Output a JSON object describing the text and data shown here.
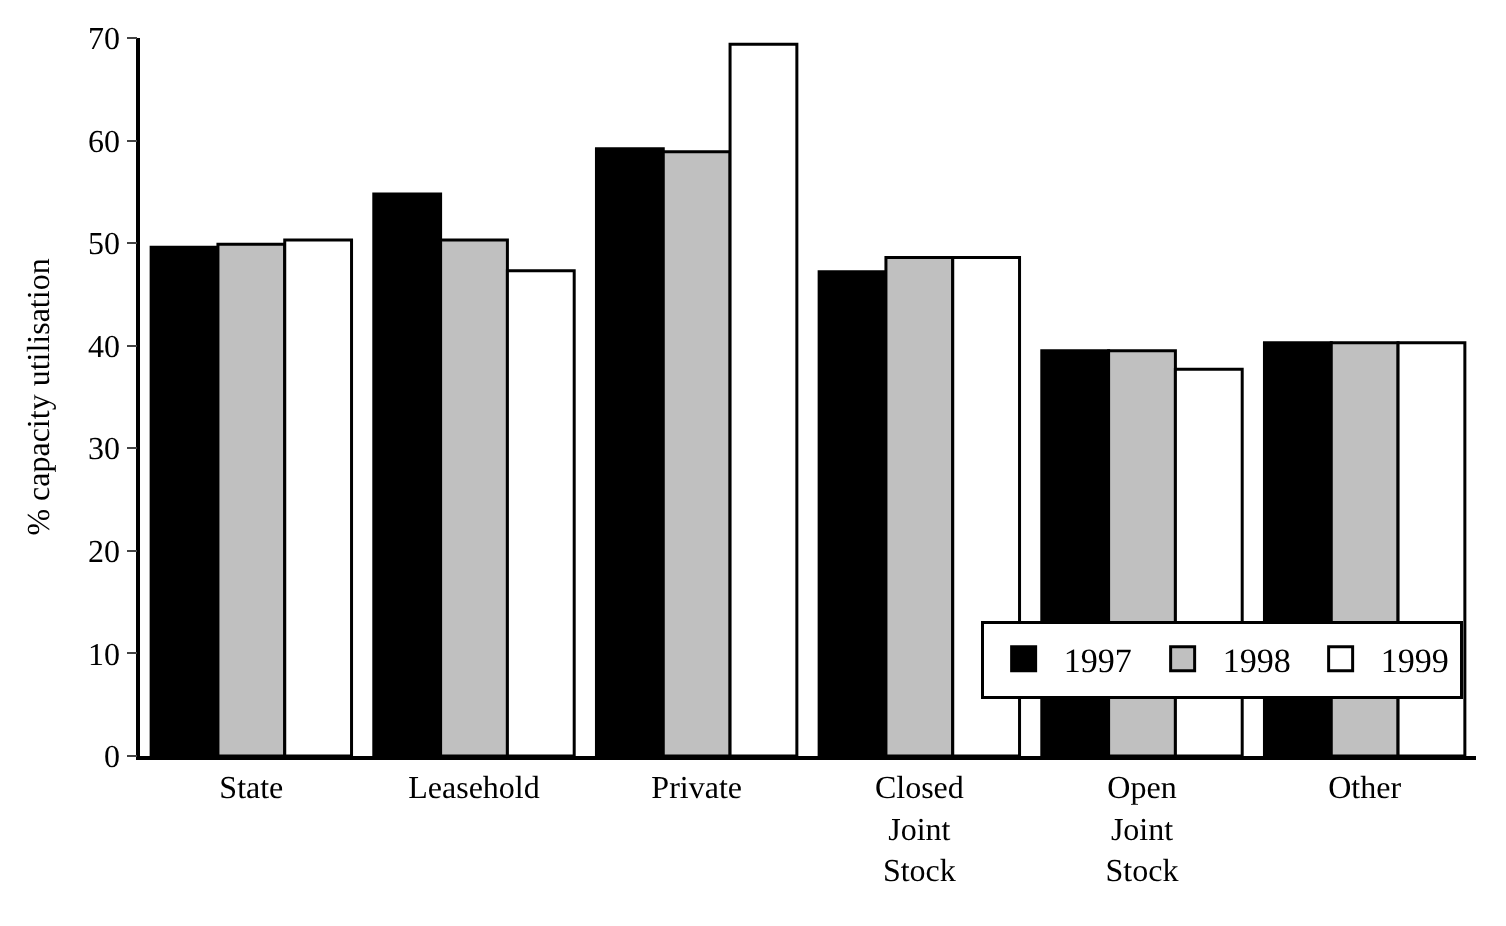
{
  "chart_data": {
    "type": "bar",
    "ylabel": "% capacity utilisation",
    "categories": [
      "State",
      "Leasehold",
      "Private",
      "Closed\nJoint\nStock",
      "Open\nJoint\nStock",
      "Other"
    ],
    "series": [
      {
        "name": "1997",
        "color": "#000000",
        "values": [
          49.6,
          54.8,
          59.2,
          47.2,
          39.5,
          40.3
        ]
      },
      {
        "name": "1998",
        "color": "#c0c0c0",
        "values": [
          49.9,
          50.3,
          58.9,
          48.6,
          39.5,
          40.3
        ]
      },
      {
        "name": "1999",
        "color": "#ffffff",
        "values": [
          50.3,
          47.3,
          69.4,
          48.6,
          37.7,
          40.3
        ]
      }
    ],
    "ylim": [
      0,
      70
    ],
    "yticks": [
      0,
      10,
      20,
      30,
      40,
      50,
      60,
      70
    ],
    "legend": "bottom right"
  }
}
